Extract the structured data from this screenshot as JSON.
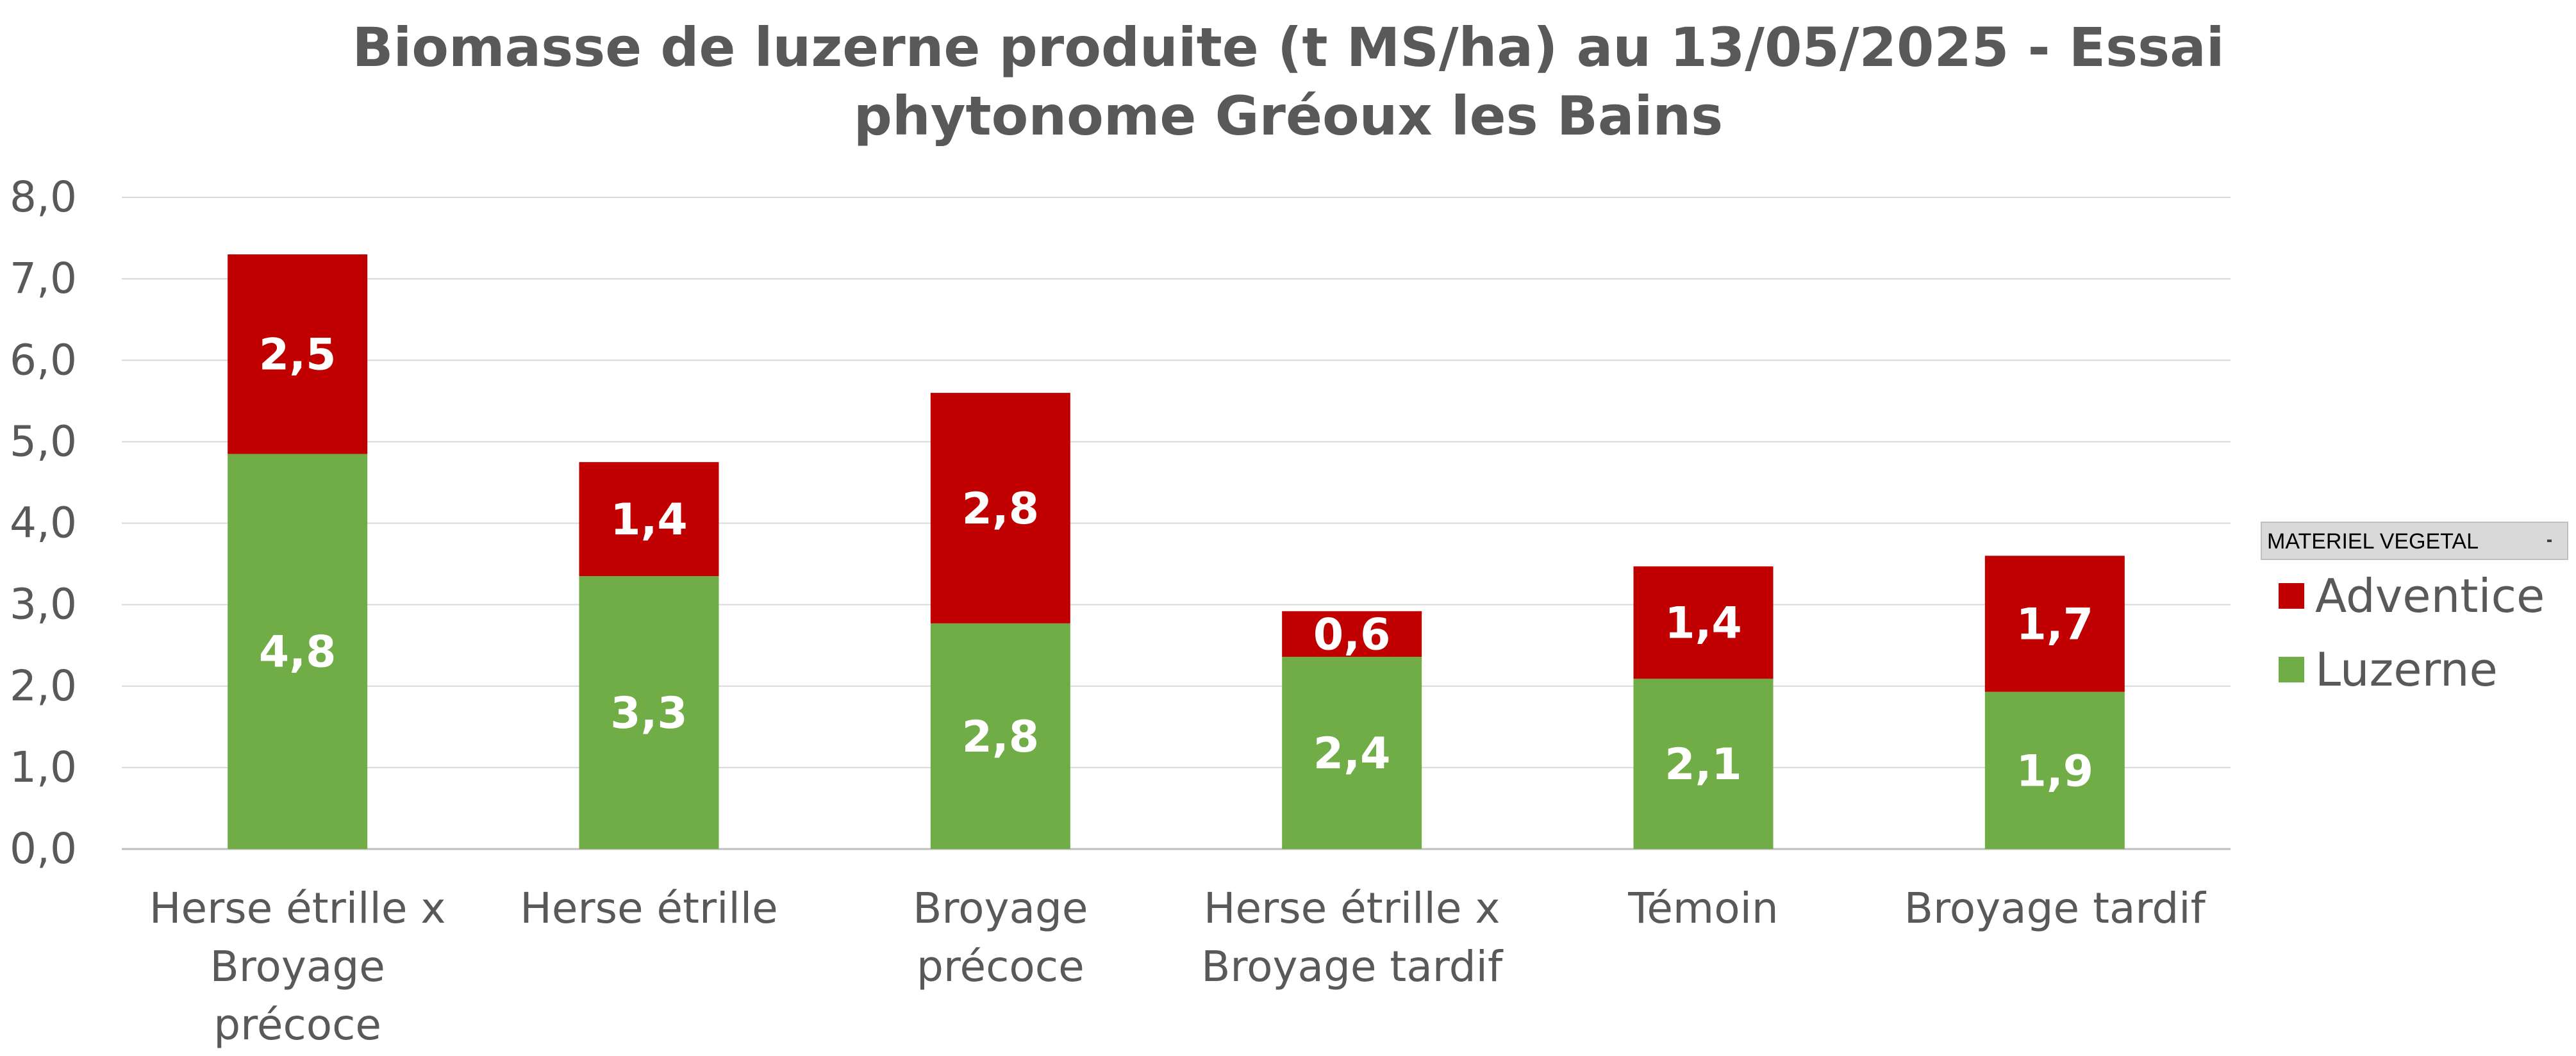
{
  "chart_data": {
    "type": "bar",
    "stacked": true,
    "title_line1": "Biomasse de luzerne produite (t MS/ha) au 13/05/2025 - Essai",
    "title_line2": "phytonome Gréoux les Bains",
    "xlabel": "",
    "ylabel": "",
    "ylim": [
      0,
      8
    ],
    "ytick_labels": [
      "0,0",
      "1,0",
      "2,0",
      "3,0",
      "4,0",
      "5,0",
      "6,0",
      "7,0",
      "8,0"
    ],
    "grid": true,
    "legend_position": "right",
    "legend_filter_label": "MATERIEL VEGETAL",
    "categories": [
      [
        "Herse étrille x",
        "Broyage",
        "précoce"
      ],
      [
        "Herse étrille"
      ],
      [
        "Broyage",
        "précoce"
      ],
      [
        "Herse étrille x",
        "Broyage tardif"
      ],
      [
        "Témoin"
      ],
      [
        "Broyage tardif"
      ]
    ],
    "series": [
      {
        "name": "Luzerne",
        "color": "#70AD47",
        "values": [
          4.85,
          3.35,
          2.77,
          2.36,
          2.09,
          1.93
        ],
        "labels": [
          "4,8",
          "3,3",
          "2,8",
          "2,4",
          "2,1",
          "1,9"
        ]
      },
      {
        "name": "Adventice",
        "color": "#C00000",
        "values": [
          2.45,
          1.4,
          2.83,
          0.56,
          1.38,
          1.67
        ],
        "labels": [
          "2,5",
          "1,4",
          "2,8",
          "0,6",
          "1,4",
          "1,7"
        ]
      }
    ],
    "legend_order": [
      "Adventice",
      "Luzerne"
    ]
  }
}
